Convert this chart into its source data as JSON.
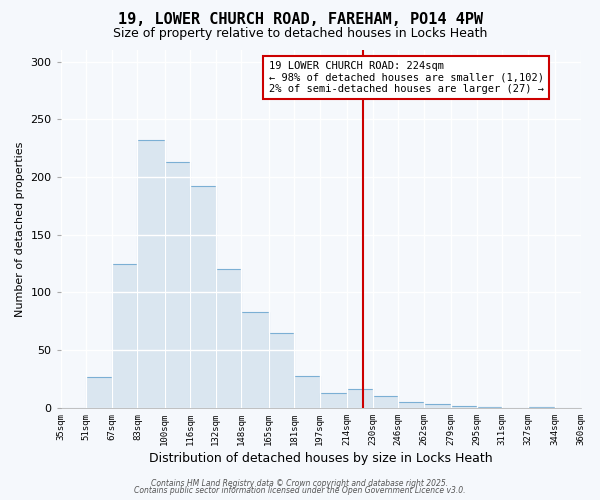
{
  "title1": "19, LOWER CHURCH ROAD, FAREHAM, PO14 4PW",
  "title2": "Size of property relative to detached houses in Locks Heath",
  "xlabel": "Distribution of detached houses by size in Locks Heath",
  "ylabel": "Number of detached properties",
  "bar_color": "#dae6f0",
  "bar_edge_color": "#7bafd4",
  "bin_edges": [
    35,
    51,
    67,
    83,
    100,
    116,
    132,
    148,
    165,
    181,
    197,
    214,
    230,
    246,
    262,
    279,
    295,
    311,
    327,
    344,
    360
  ],
  "bar_heights": [
    0,
    27,
    125,
    232,
    213,
    192,
    120,
    83,
    65,
    28,
    13,
    16,
    10,
    5,
    3,
    2,
    1,
    0,
    1,
    0
  ],
  "vline_x": 224,
  "vline_color": "#cc0000",
  "annotation_title": "19 LOWER CHURCH ROAD: 224sqm",
  "annotation_line1": "← 98% of detached houses are smaller (1,102)",
  "annotation_line2": "2% of semi-detached houses are larger (27) →",
  "annotation_border_color": "#cc0000",
  "ylim": [
    0,
    310
  ],
  "xlim": [
    35,
    360
  ],
  "footer1": "Contains HM Land Registry data © Crown copyright and database right 2025.",
  "footer2": "Contains public sector information licensed under the Open Government Licence v3.0.",
  "plot_bg_color": "#f5f8fc",
  "fig_bg_color": "#f5f8fc",
  "grid_color": "#ffffff",
  "title_fontsize": 11,
  "subtitle_fontsize": 9
}
